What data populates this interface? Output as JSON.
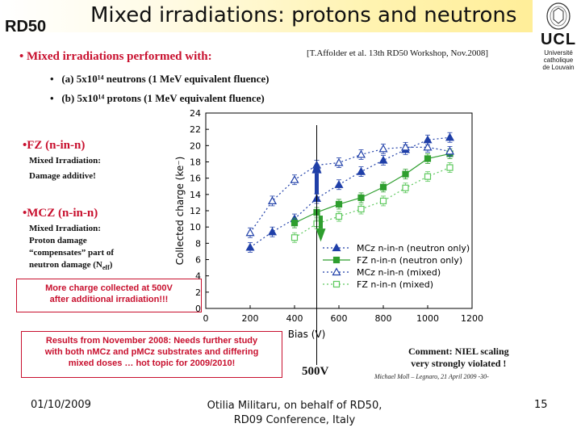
{
  "header": {
    "logo_text": "RD50",
    "title": "Mixed irradiations: protons and neutrons",
    "university_name": "UCL",
    "university_sub": [
      "Université",
      "catholique",
      "de Louvain"
    ]
  },
  "reference": "[T.Affolder et al. 13th RD50 Workshop, Nov.2008]",
  "main_bullet": "Mixed irradiations performed with:",
  "sub_bullets": [
    "(a) 5x10¹⁴ neutrons (1 MeV equivalent fluence)",
    "(b) 5x10¹⁴ protons (1 MeV equivalent fluence)"
  ],
  "fz_block": {
    "head": "FZ (n-in-n)",
    "lines": [
      "Mixed Irradiation:",
      "Damage additive!"
    ]
  },
  "mcz_block": {
    "head": "MCZ (n-in-n)",
    "lines": [
      "Mixed Irradiation:",
      "Proton damage",
      "“compensates” part of",
      "neutron damage (N",
      "eff",
      ")"
    ]
  },
  "red_box_1": [
    "More charge collected at 500V",
    "after additional irradiation!!!"
  ],
  "red_box_2": [
    "Results from November 2008: Needs further study",
    "with both nMCz and pMCz substrates and differing",
    "mixed doses … hot topic for 2009/2010!"
  ],
  "comment": [
    "Comment: NIEL scaling",
    "very strongly violated !"
  ],
  "marker_label": "500V",
  "credit": "Michael Moll – Legnaro, 21 April 2009   -30-",
  "footer": {
    "date": "01/10/2009",
    "center": [
      "Otilia Militaru, on behalf of RD50,",
      "RD09 Conference, Italy"
    ],
    "page": "15"
  },
  "colors": {
    "accent_red": "#c8102e",
    "series_blue": "#1f3fa8",
    "series_green": "#2e9e2e"
  },
  "chart_data": {
    "type": "line",
    "xlabel": "Bias (V)",
    "ylabel": "Collected charge (ke⁻)",
    "xlim": [
      0,
      1200
    ],
    "ylim": [
      0,
      24
    ],
    "xticks": [
      0,
      200,
      400,
      600,
      800,
      1000,
      1200
    ],
    "yticks": [
      0,
      2,
      4,
      6,
      8,
      10,
      12,
      14,
      16,
      18,
      20,
      22,
      24
    ],
    "legend_position": "bottom-right",
    "vertical_marker_x": 500,
    "series": [
      {
        "name": "MCz n-in-n (neutron only)",
        "color": "#1f3fa8",
        "marker": "triangle-filled",
        "dash": "dotted",
        "x": [
          200,
          300,
          400,
          500,
          600,
          700,
          800,
          900,
          1000,
          1100
        ],
        "y": [
          7.5,
          9.4,
          11.0,
          13.5,
          15.2,
          16.8,
          18.2,
          19.5,
          20.7,
          21.0
        ]
      },
      {
        "name": "FZ n-in-n (neutron only)",
        "color": "#2e9e2e",
        "marker": "square-filled",
        "dash": "solid",
        "x": [
          400,
          500,
          600,
          700,
          800,
          900,
          1000,
          1100
        ],
        "y": [
          10.5,
          11.8,
          12.8,
          13.6,
          14.9,
          16.5,
          18.4,
          19.0
        ]
      },
      {
        "name": "MCz n-in-n (mixed)",
        "color": "#1f3fa8",
        "marker": "triangle-open",
        "dash": "dotted",
        "x": [
          200,
          300,
          400,
          500,
          600,
          700,
          800,
          900,
          1000,
          1100
        ],
        "y": [
          9.3,
          13.2,
          15.8,
          17.6,
          17.9,
          18.9,
          19.6,
          19.8,
          19.8,
          19.3
        ]
      },
      {
        "name": "FZ n-in-n (mixed)",
        "color": "#5cc85c",
        "marker": "square-open",
        "dash": "dotted",
        "x": [
          400,
          500,
          600,
          700,
          800,
          900,
          1000,
          1100
        ],
        "y": [
          8.7,
          10.4,
          11.3,
          12.2,
          13.2,
          14.8,
          16.2,
          17.3
        ]
      }
    ]
  }
}
